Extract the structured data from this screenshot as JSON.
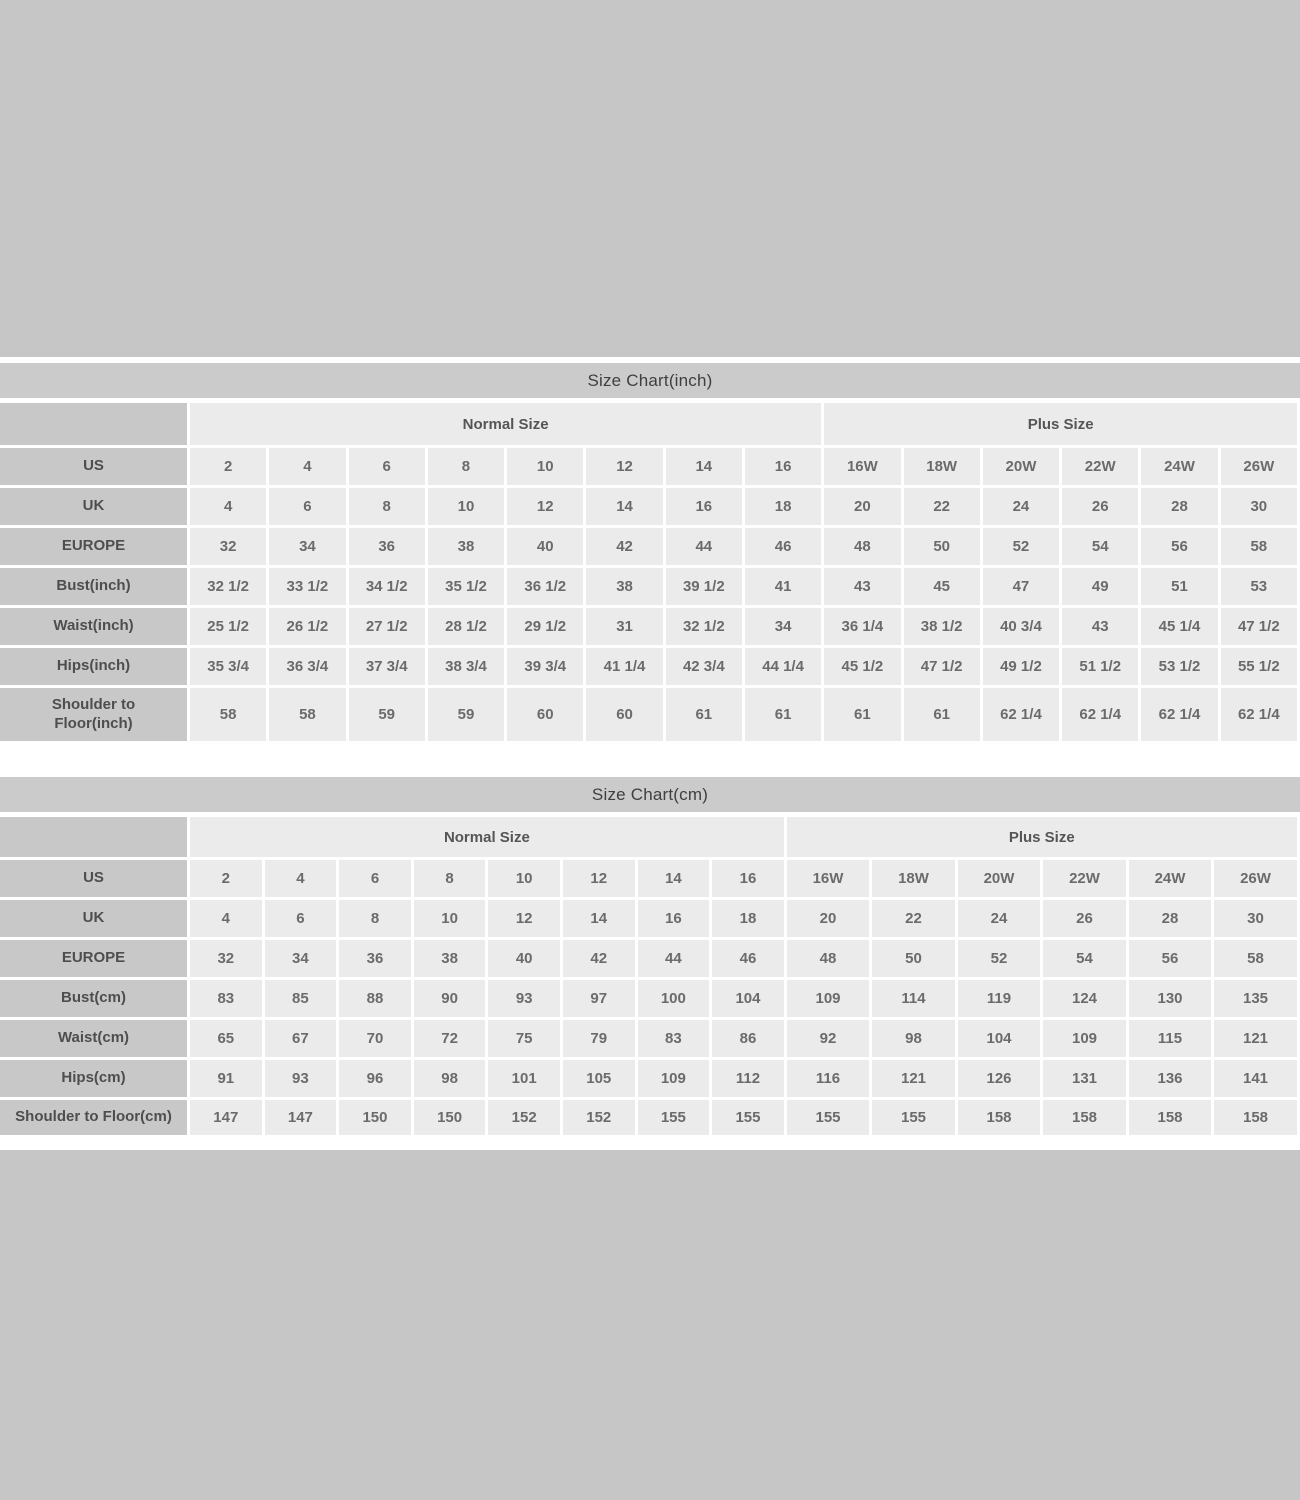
{
  "colors": {
    "page_background": "#c6c6c6",
    "title_bar": "#cbcbcb",
    "label_cell": "#c8c8c8",
    "data_cell": "#ebebeb",
    "grid_line": "#ffffff",
    "text": "#6b6b6b"
  },
  "chart_data": [
    {
      "type": "table",
      "title": "Size Chart(inch)",
      "group_headers": [
        "Normal Size",
        "Plus Size"
      ],
      "normal_size_columns": [
        "2",
        "4",
        "6",
        "8",
        "10",
        "12",
        "14",
        "16"
      ],
      "plus_size_columns": [
        "16W",
        "18W",
        "20W",
        "22W",
        "24W",
        "26W"
      ],
      "rows": [
        {
          "label": "US",
          "values": [
            "2",
            "4",
            "6",
            "8",
            "10",
            "12",
            "14",
            "16",
            "16W",
            "18W",
            "20W",
            "22W",
            "24W",
            "26W"
          ]
        },
        {
          "label": "UK",
          "values": [
            "4",
            "6",
            "8",
            "10",
            "12",
            "14",
            "16",
            "18",
            "20",
            "22",
            "24",
            "26",
            "28",
            "30"
          ]
        },
        {
          "label": "EUROPE",
          "values": [
            "32",
            "34",
            "36",
            "38",
            "40",
            "42",
            "44",
            "46",
            "48",
            "50",
            "52",
            "54",
            "56",
            "58"
          ]
        },
        {
          "label": "Bust(inch)",
          "values": [
            "32 1/2",
            "33 1/2",
            "34 1/2",
            "35 1/2",
            "36 1/2",
            "38",
            "39 1/2",
            "41",
            "43",
            "45",
            "47",
            "49",
            "51",
            "53"
          ]
        },
        {
          "label": "Waist(inch)",
          "values": [
            "25 1/2",
            "26 1/2",
            "27 1/2",
            "28 1/2",
            "29 1/2",
            "31",
            "32 1/2",
            "34",
            "36 1/4",
            "38 1/2",
            "40 3/4",
            "43",
            "45 1/4",
            "47 1/2"
          ]
        },
        {
          "label": "Hips(inch)",
          "values": [
            "35 3/4",
            "36 3/4",
            "37 3/4",
            "38 3/4",
            "39 3/4",
            "41 1/4",
            "42 3/4",
            "44 1/4",
            "45 1/2",
            "47 1/2",
            "49 1/2",
            "51 1/2",
            "53 1/2",
            "55 1/2"
          ]
        },
        {
          "label": "Shoulder to Floor(inch)",
          "values": [
            "58",
            "58",
            "59",
            "59",
            "60",
            "60",
            "61",
            "61",
            "61",
            "61",
            "62 1/4",
            "62 1/4",
            "62 1/4",
            "62 1/4"
          ]
        }
      ]
    },
    {
      "type": "table",
      "title": "Size Chart(cm)",
      "group_headers": [
        "Normal Size",
        "Plus Size"
      ],
      "normal_size_columns": [
        "2",
        "4",
        "6",
        "8",
        "10",
        "12",
        "14",
        "16"
      ],
      "plus_size_columns": [
        "16W",
        "18W",
        "20W",
        "22W",
        "24W",
        "26W"
      ],
      "rows": [
        {
          "label": "US",
          "values": [
            "2",
            "4",
            "6",
            "8",
            "10",
            "12",
            "14",
            "16",
            "16W",
            "18W",
            "20W",
            "22W",
            "24W",
            "26W"
          ]
        },
        {
          "label": "UK",
          "values": [
            "4",
            "6",
            "8",
            "10",
            "12",
            "14",
            "16",
            "18",
            "20",
            "22",
            "24",
            "26",
            "28",
            "30"
          ]
        },
        {
          "label": "EUROPE",
          "values": [
            "32",
            "34",
            "36",
            "38",
            "40",
            "42",
            "44",
            "46",
            "48",
            "50",
            "52",
            "54",
            "56",
            "58"
          ]
        },
        {
          "label": "Bust(cm)",
          "values": [
            "83",
            "85",
            "88",
            "90",
            "93",
            "97",
            "100",
            "104",
            "109",
            "114",
            "119",
            "124",
            "130",
            "135"
          ]
        },
        {
          "label": "Waist(cm)",
          "values": [
            "65",
            "67",
            "70",
            "72",
            "75",
            "79",
            "83",
            "86",
            "92",
            "98",
            "104",
            "109",
            "115",
            "121"
          ]
        },
        {
          "label": "Hips(cm)",
          "values": [
            "91",
            "93",
            "96",
            "98",
            "101",
            "105",
            "109",
            "112",
            "116",
            "121",
            "126",
            "131",
            "136",
            "141"
          ]
        },
        {
          "label": "Shoulder to Floor(cm)",
          "values": [
            "147",
            "147",
            "150",
            "150",
            "152",
            "152",
            "155",
            "155",
            "155",
            "155",
            "158",
            "158",
            "158",
            "158"
          ]
        }
      ]
    }
  ]
}
